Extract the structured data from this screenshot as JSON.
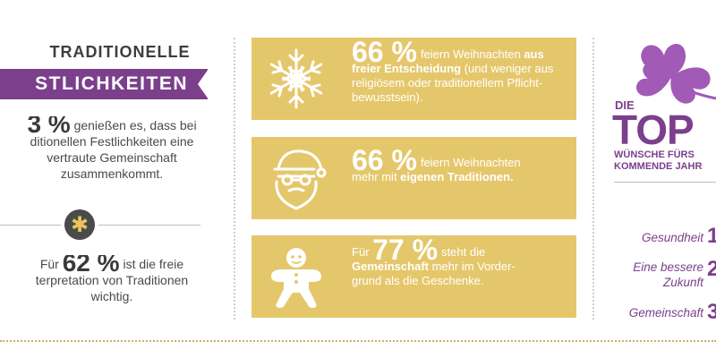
{
  "left": {
    "heading": "TRADITIONELLE",
    "banner": "STLICHKEITEN",
    "stat1": {
      "pct": "3 %",
      "line1": " genießen es, dass bei",
      "line2": "ditionellen Festlichkeiten eine",
      "line3": "vertraute Gemeinschaft",
      "line4": "zusammenkommt."
    },
    "star": "✱",
    "stat2": {
      "prefix": "Für ",
      "pct": "62 %",
      "suffix": " ist die freie",
      "line2": "terpretation von Traditionen",
      "line3": "wichtig."
    }
  },
  "cards": [
    {
      "icon": "snowflake-icon",
      "pct": "66 %",
      "t1": "feiern Weihnachten ",
      "b1": "aus",
      "b2": "freier Entscheidung",
      "t2": " (und weniger aus",
      "t3": "religiösem oder traditionellem Pflicht-",
      "t4": "bewusstsein)."
    },
    {
      "icon": "santa-icon",
      "pct": "66 %",
      "t1": "feiern Weihnachten",
      "t2": "mehr mit ",
      "b1": "eigenen Traditionen."
    },
    {
      "icon": "gingerbread-man-icon",
      "prefix": "Für ",
      "pct": "77 %",
      "t1": "steht die",
      "b1": "Gemeinschaft",
      "t2": " mehr im Vorder-",
      "t3": "grund als die Geschenke."
    }
  ],
  "right": {
    "die": "DIE",
    "top": "TOP",
    "sub1": "WÜNSCHE FÜRS",
    "sub2": "KOMMENDE JAHR",
    "wishes": [
      {
        "label": "Gesundheit",
        "rank": "1"
      },
      {
        "label1": "Eine bessere",
        "label2": "Zukunft",
        "rank": "2"
      },
      {
        "label": "Gemeinschaft",
        "rank": "3"
      }
    ]
  },
  "colors": {
    "purple": "#7b3f8c",
    "gold": "#e5c76b",
    "dark": "#4a4a4a"
  }
}
